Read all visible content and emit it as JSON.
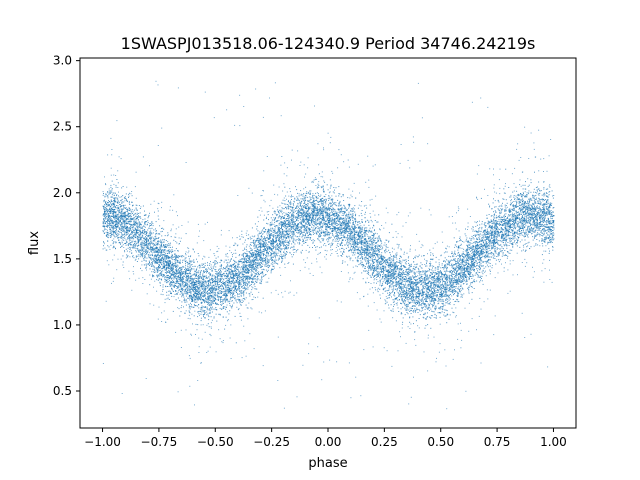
{
  "chart_data": {
    "type": "scatter",
    "title": "1SWASPJ013518.06-124340.9 Period 34746.24219s",
    "xlabel": "phase",
    "ylabel": "flux",
    "xlim": [
      -1.1,
      1.1
    ],
    "ylim": [
      0.22,
      3.02
    ],
    "xticks": [
      -1.0,
      -0.75,
      -0.5,
      -0.25,
      0.0,
      0.25,
      0.5,
      0.75,
      1.0
    ],
    "xtick_labels": [
      "−1.00",
      "−0.75",
      "−0.50",
      "−0.25",
      "0.00",
      "0.25",
      "0.50",
      "0.75",
      "1.00"
    ],
    "yticks": [
      0.5,
      1.0,
      1.5,
      2.0,
      2.5,
      3.0
    ],
    "ytick_labels": [
      "0.5",
      "1.0",
      "1.5",
      "2.0",
      "2.5",
      "3.0"
    ],
    "grid": false,
    "point_color": "#1f77b4",
    "series": [
      {
        "model": "sinusoid",
        "mean": 1.55,
        "amplitude": 0.28,
        "peak_phases": [
          -1.0,
          -0.05,
          1.0
        ],
        "trough_phases": [
          -0.55,
          0.42
        ],
        "scatter_sigma": 0.1,
        "outlier_range": [
          0.35,
          2.85
        ],
        "sample_points": [
          {
            "x": -1.0,
            "y": 1.75
          },
          {
            "x": -0.9,
            "y": 1.62
          },
          {
            "x": -0.8,
            "y": 1.46
          },
          {
            "x": -0.7,
            "y": 1.32
          },
          {
            "x": -0.6,
            "y": 1.26
          },
          {
            "x": -0.55,
            "y": 1.25
          },
          {
            "x": -0.5,
            "y": 1.27
          },
          {
            "x": -0.4,
            "y": 1.42
          },
          {
            "x": -0.3,
            "y": 1.6
          },
          {
            "x": -0.2,
            "y": 1.75
          },
          {
            "x": -0.1,
            "y": 1.82
          },
          {
            "x": -0.05,
            "y": 1.83
          },
          {
            "x": 0.0,
            "y": 1.78
          },
          {
            "x": 0.1,
            "y": 1.65
          },
          {
            "x": 0.2,
            "y": 1.48
          },
          {
            "x": 0.3,
            "y": 1.33
          },
          {
            "x": 0.42,
            "y": 1.25
          },
          {
            "x": 0.5,
            "y": 1.3
          },
          {
            "x": 0.6,
            "y": 1.45
          },
          {
            "x": 0.7,
            "y": 1.62
          },
          {
            "x": 0.8,
            "y": 1.75
          },
          {
            "x": 0.9,
            "y": 1.82
          },
          {
            "x": 1.0,
            "y": 1.83
          }
        ]
      }
    ]
  }
}
